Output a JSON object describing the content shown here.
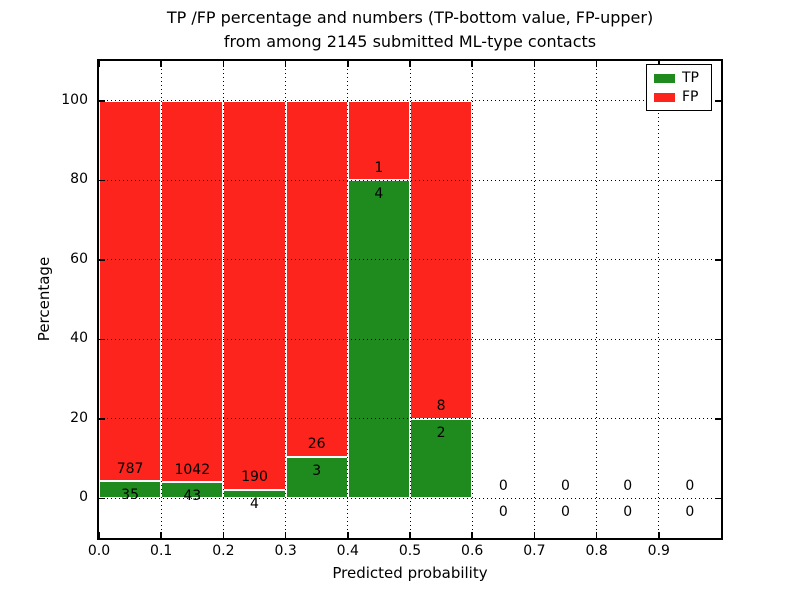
{
  "chart_data": {
    "type": "bar",
    "subtype": "stacked-percentage-histogram",
    "title_line1": "TP /FP percentage and numbers (TP-bottom value, FP-upper)",
    "title_line2": "from among 2145 submitted ML-type contacts",
    "title": "TP /FP percentage and numbers (TP-bottom value, FP-upper) from among 2145 submitted ML-type contacts",
    "xlabel": "Predicted probability",
    "ylabel": "Percentage",
    "total_submitted": 2145,
    "xlim": [
      0.0,
      1.0
    ],
    "ylim": [
      -10,
      110
    ],
    "xticks": [
      "0.0",
      "0.1",
      "0.2",
      "0.3",
      "0.4",
      "0.5",
      "0.6",
      "0.7",
      "0.8",
      "0.9"
    ],
    "yticks": [
      "0",
      "20",
      "40",
      "60",
      "80",
      "100"
    ],
    "grid": "dotted black, both axes, drawn over bars",
    "bar_edge_color": "#ffffff",
    "colors": {
      "tp": "#1f8b1f",
      "fp": "#fc241c"
    },
    "legend": {
      "position": "upper right",
      "items": [
        {
          "label": "TP",
          "color": "#1f8b1f"
        },
        {
          "label": "FP",
          "color": "#fc241c"
        }
      ]
    },
    "bins": [
      {
        "range": [
          0.0,
          0.1
        ],
        "tp": 35,
        "fp": 787
      },
      {
        "range": [
          0.1,
          0.2
        ],
        "tp": 43,
        "fp": 1042
      },
      {
        "range": [
          0.2,
          0.3
        ],
        "tp": 4,
        "fp": 190
      },
      {
        "range": [
          0.3,
          0.4
        ],
        "tp": 3,
        "fp": 26
      },
      {
        "range": [
          0.4,
          0.5
        ],
        "tp": 4,
        "fp": 1
      },
      {
        "range": [
          0.5,
          0.6
        ],
        "tp": 2,
        "fp": 8
      },
      {
        "range": [
          0.6,
          0.7
        ],
        "tp": 0,
        "fp": 0
      },
      {
        "range": [
          0.7,
          0.8
        ],
        "tp": 0,
        "fp": 0
      },
      {
        "range": [
          0.8,
          0.9
        ],
        "tp": 0,
        "fp": 0
      },
      {
        "range": [
          0.9,
          1.0
        ],
        "tp": 0,
        "fp": 0
      }
    ],
    "annotation_note": "FP count printed above green-bar top, TP count printed below green-bar top; bars show TP share of each bin as percent, stacked to 100%"
  }
}
